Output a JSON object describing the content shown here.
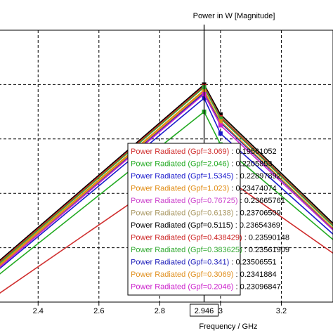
{
  "chart_data": {
    "type": "line",
    "title": "Power in W [Magnitude]",
    "xlabel": "Frequency / GHz",
    "xlim": [
      2.27,
      3.37
    ],
    "ylim": [
      0.0,
      1.0
    ],
    "x_ticks": [
      "2.4",
      "2.6",
      "2.8",
      "3",
      "3.2"
    ],
    "x_tick_values": [
      2.4,
      2.6,
      2.8,
      3.0,
      3.2
    ],
    "marker_x": 2.946,
    "marker_label": "2.946",
    "grid": true,
    "legend_position": "center-right",
    "x": [
      2.27,
      2.946,
      3.0,
      3.37
    ],
    "series": [
      {
        "name": "Power Radiated (Gpf=3.069)",
        "value": "0.19561052",
        "color": "#d03030",
        "values": [
          0.03,
          0.55,
          0.47,
          0.18
        ]
      },
      {
        "name": "Power Radiated (Gpf=2.046)",
        "value": "0.2205853",
        "color": "#22aa22",
        "values": [
          0.1,
          0.7,
          0.58,
          0.23
        ]
      },
      {
        "name": "Power Radiated (Gpf=1.5345)",
        "value": "0.22897892",
        "color": "#1a1acc",
        "values": [
          0.12,
          0.75,
          0.62,
          0.25
        ]
      },
      {
        "name": "Power Radiated (Gpf=1.023)",
        "value": "0.23474074",
        "color": "#e08a10",
        "values": [
          0.135,
          0.78,
          0.66,
          0.27
        ]
      },
      {
        "name": "Power Radiated (Gpf=0.76725)",
        "value": "0.23665761",
        "color": "#cc44cc",
        "values": [
          0.14,
          0.79,
          0.675,
          0.28
        ]
      },
      {
        "name": "Power Radiated (Gpf=0.6138)",
        "value": "0.23706509",
        "color": "#aa9966",
        "values": [
          0.145,
          0.795,
          0.685,
          0.285
        ]
      },
      {
        "name": "Power Radiated (Gpf=0.5115)",
        "value": "0.23654369",
        "color": "#000000",
        "values": [
          0.15,
          0.8,
          0.69,
          0.29
        ]
      },
      {
        "name": "Power Radiated (Gpf=0.438429)",
        "value": "0.23590148",
        "color": "#cc2222",
        "values": [
          0.145,
          0.795,
          0.68,
          0.283
        ]
      },
      {
        "name": "Power Radiated (Gpf=0.383625)",
        "value": "0.23561909",
        "color": "#33aa33",
        "values": [
          0.14,
          0.79,
          0.675,
          0.28
        ]
      },
      {
        "name": "Power Radiated (Gpf=0.341)",
        "value": "0.23506551",
        "color": "#2222bb",
        "values": [
          0.13,
          0.77,
          0.66,
          0.27
        ]
      },
      {
        "name": "Power Radiated (Gpf=0.3069)",
        "value": "0.2341884",
        "color": "#e09020",
        "values": [
          0.13,
          0.775,
          0.665,
          0.272
        ]
      },
      {
        "name": "Power Radiated (Gpf=0.2046)",
        "value": "0.23096847",
        "color": "#cc22cc",
        "values": [
          0.125,
          0.765,
          0.65,
          0.265
        ]
      }
    ]
  }
}
